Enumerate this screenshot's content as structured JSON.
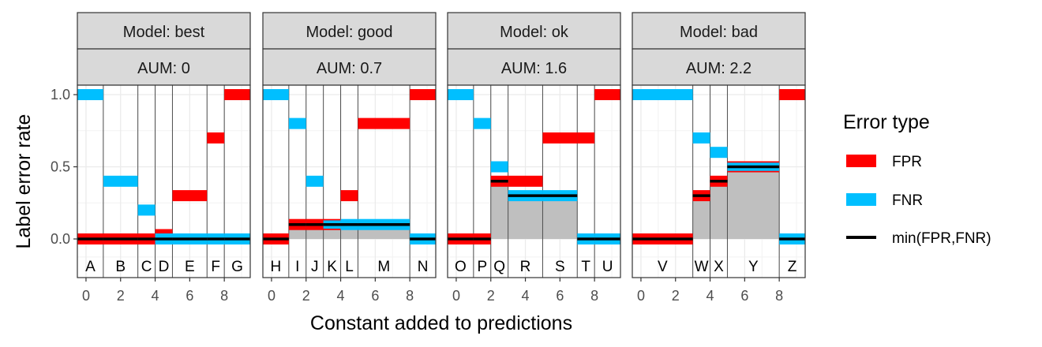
{
  "chart_data": {
    "type": "step",
    "xlabel": "Constant added to predictions",
    "ylabel": "Label error rate",
    "xlim": [
      -0.5,
      9.5
    ],
    "ylim": [
      -0.25,
      1.05
    ],
    "x_ticks": [
      0,
      2,
      4,
      6,
      8
    ],
    "y_ticks": [
      0.0,
      0.5,
      1.0
    ],
    "y_tick_labels": [
      "0.0",
      "0.5",
      "1.0"
    ],
    "legend": {
      "title": "Error type",
      "position": "right",
      "items": [
        {
          "label": "FPR",
          "kind": "fpr",
          "color": "#FF0000"
        },
        {
          "label": "FNR",
          "kind": "fnr",
          "color": "#00BFFF"
        },
        {
          "label": "min(FPR,FNR)",
          "kind": "min",
          "color": "#000000"
        }
      ]
    },
    "colors": {
      "fpr": "#FF0000",
      "fnr": "#00BFFF",
      "min": "#000000",
      "area": "#BFBFBF",
      "strip": "#D9D9D9"
    },
    "panels": [
      {
        "model": "Model: best",
        "aum": "AUM: 0",
        "segments": [
          {
            "label": "A",
            "x0": -0.5,
            "x1": 1,
            "fpr": 0,
            "fnr": 1
          },
          {
            "label": "B",
            "x0": 1,
            "x1": 3,
            "fpr": 0,
            "fnr": 0.4
          },
          {
            "label": "C",
            "x0": 3,
            "x1": 4,
            "fpr": 0,
            "fnr": 0.2
          },
          {
            "label": "D",
            "x0": 4,
            "x1": 5,
            "fpr": 0.03,
            "fnr": 0
          },
          {
            "label": "E",
            "x0": 5,
            "x1": 7,
            "fpr": 0.3,
            "fnr": 0
          },
          {
            "label": "F",
            "x0": 7,
            "x1": 8,
            "fpr": 0.7,
            "fnr": 0
          },
          {
            "label": "G",
            "x0": 8,
            "x1": 9.5,
            "fpr": 1,
            "fnr": 0
          }
        ]
      },
      {
        "model": "Model: good",
        "aum": "AUM: 0.7",
        "segments": [
          {
            "label": "H",
            "x0": -0.5,
            "x1": 1,
            "fpr": 0,
            "fnr": 1
          },
          {
            "label": "I",
            "x0": 1,
            "x1": 2,
            "fpr": 0.1,
            "fnr": 0.8
          },
          {
            "label": "J",
            "x0": 2,
            "x1": 3,
            "fpr": 0.1,
            "fnr": 0.4
          },
          {
            "label": "K",
            "x0": 3,
            "x1": 4,
            "fpr": 0.1,
            "fnr": 0.1
          },
          {
            "label": "L",
            "x0": 4,
            "x1": 5,
            "fpr": 0.3,
            "fnr": 0.1
          },
          {
            "label": "M",
            "x0": 5,
            "x1": 8,
            "fpr": 0.8,
            "fnr": 0.1
          },
          {
            "label": "N",
            "x0": 8,
            "x1": 9.5,
            "fpr": 1,
            "fnr": 0
          }
        ]
      },
      {
        "model": "Model: ok",
        "aum": "AUM: 1.6",
        "segments": [
          {
            "label": "O",
            "x0": -0.5,
            "x1": 1,
            "fpr": 0,
            "fnr": 1
          },
          {
            "label": "P",
            "x0": 1,
            "x1": 2,
            "fpr": 0,
            "fnr": 0.8
          },
          {
            "label": "Q",
            "x0": 2,
            "x1": 3,
            "fpr": 0.4,
            "fnr": 0.5
          },
          {
            "label": "R",
            "x0": 3,
            "x1": 5,
            "fpr": 0.4,
            "fnr": 0.3
          },
          {
            "label": "S",
            "x0": 5,
            "x1": 7,
            "fpr": 0.7,
            "fnr": 0.3
          },
          {
            "label": "T",
            "x0": 7,
            "x1": 8,
            "fpr": 0.7,
            "fnr": 0
          },
          {
            "label": "U",
            "x0": 8,
            "x1": 9.5,
            "fpr": 1,
            "fnr": 0
          }
        ]
      },
      {
        "model": "Model: bad",
        "aum": "AUM: 2.2",
        "segments": [
          {
            "label": "V",
            "x0": -0.5,
            "x1": 3,
            "fpr": 0,
            "fnr": 1
          },
          {
            "label": "W",
            "x0": 3,
            "x1": 4,
            "fpr": 0.3,
            "fnr": 0.7
          },
          {
            "label": "X",
            "x0": 4,
            "x1": 5,
            "fpr": 0.4,
            "fnr": 0.6
          },
          {
            "label": "Y",
            "x0": 5,
            "x1": 8,
            "fpr": 0.5,
            "fnr": 0.5
          },
          {
            "label": "Z",
            "x0": 8,
            "x1": 9.5,
            "fpr": 1,
            "fnr": 0
          }
        ]
      }
    ]
  }
}
